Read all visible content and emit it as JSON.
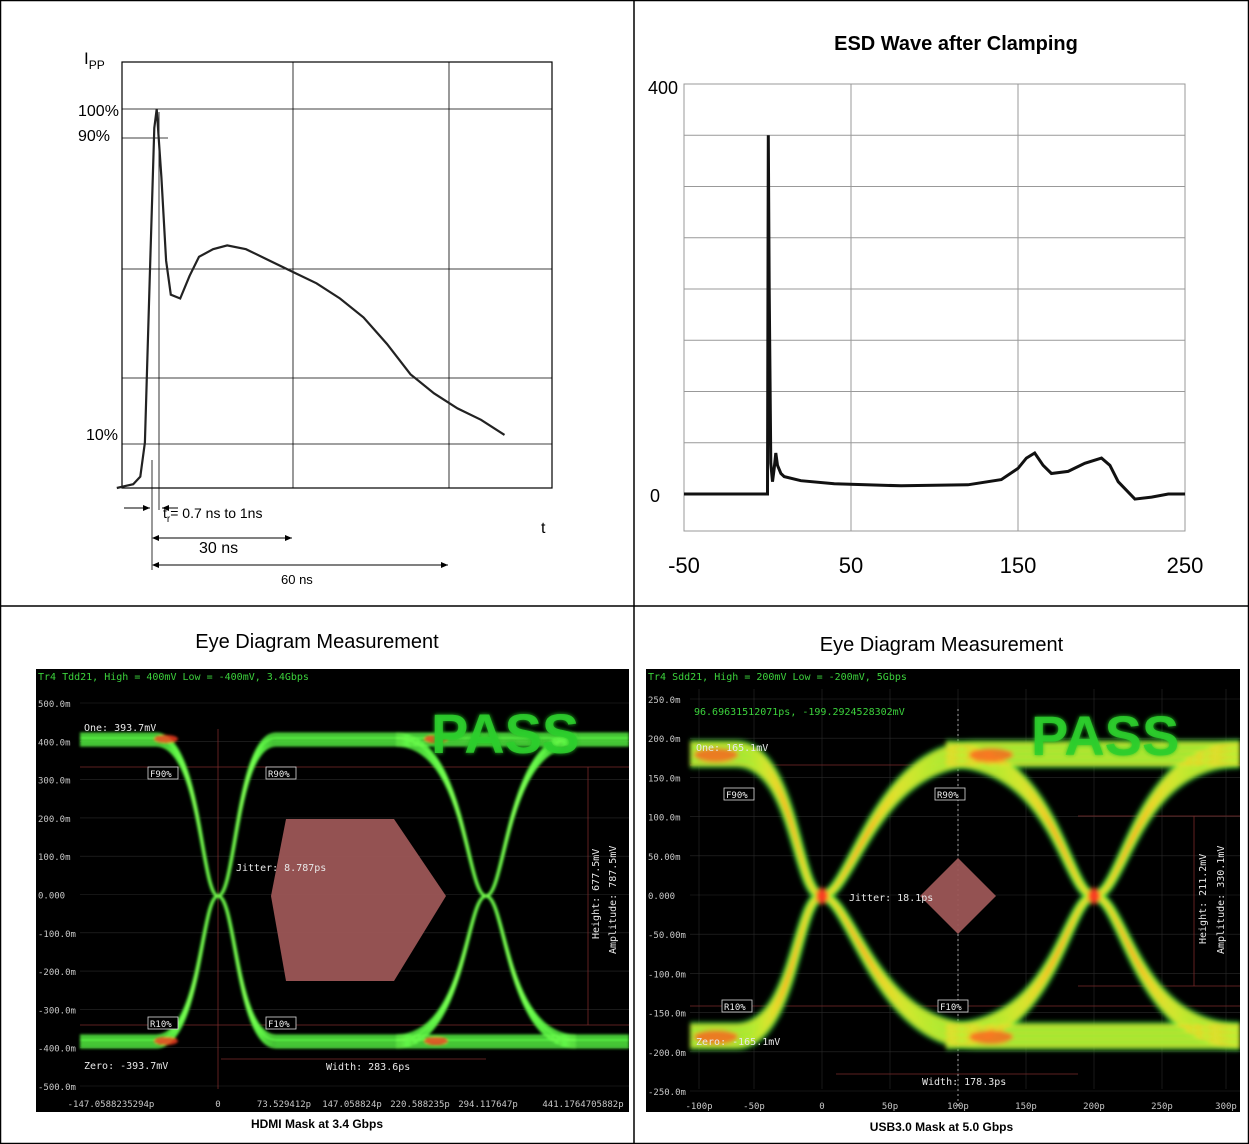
{
  "panel1": {
    "ylabel_main": "I",
    "ylabel_sub": "PP",
    "y_pct_labels": [
      "100%",
      "90%",
      "10%"
    ],
    "xlabel": "t",
    "rise_time_label": "= 0.7 ns to 1ns",
    "rise_time_symbol": "t",
    "rise_time_sub": "r",
    "label_30": "30 ns",
    "label_60": "60 ns",
    "chart_data": {
      "type": "line",
      "title": "",
      "xlabel": "t",
      "ylabel": "IPP",
      "x_unit": "ns",
      "y_unit": "% of IPP",
      "series": [
        {
          "values_x": [
            -7.5,
            -4,
            -2.5,
            -1.5,
            -0.5,
            0.5,
            1,
            2,
            3,
            4,
            6,
            8,
            10,
            13,
            16,
            20,
            25,
            30,
            35,
            40,
            45,
            50,
            55,
            60,
            65,
            70,
            75
          ],
          "values_y": [
            0,
            1,
            3,
            12,
            55,
            95,
            100,
            82,
            60,
            51,
            50,
            56,
            61,
            63,
            64,
            63,
            60,
            57,
            54,
            50,
            45,
            38,
            30,
            25,
            21,
            18,
            14
          ]
        }
      ]
    }
  },
  "panel2": {
    "title": "ESD Wave after Clamping",
    "y_tick_labels": [
      "400",
      "0"
    ],
    "x_tick_labels": [
      "-50",
      "50",
      "150",
      "250"
    ],
    "chart_data": {
      "type": "line",
      "title": "ESD Wave after Clamping",
      "xlim": [
        -50,
        250
      ],
      "ylim": [
        -50,
        400
      ],
      "x": [
        -50,
        0,
        0.5,
        1,
        2,
        3,
        4,
        5,
        6,
        8,
        10,
        20,
        40,
        80,
        120,
        140,
        150,
        155,
        160,
        165,
        170,
        180,
        190,
        200,
        205,
        210,
        220,
        230,
        240,
        250
      ],
      "y": [
        0,
        0,
        350,
        200,
        30,
        12,
        25,
        40,
        28,
        20,
        17,
        13,
        10,
        8,
        9,
        14,
        25,
        35,
        40,
        28,
        20,
        22,
        30,
        35,
        28,
        12,
        -5,
        -3,
        0,
        0
      ]
    }
  },
  "panel3": {
    "heading": "Eye Diagram Measurement",
    "caption": "HDMI Mask at 3.4 Gbps",
    "header_text": "Tr4 Tdd21, High = 400mV Low = -400mV, 3.4Gbps",
    "pass_label": "PASS",
    "y_tick_labels": [
      "500.0m",
      "400.0m",
      "300.0m",
      "200.0m",
      "100.0m",
      "0.000",
      "-100.0m",
      "-200.0m",
      "-300.0m",
      "-400.0m",
      "-500.0m"
    ],
    "x_tick_labels": [
      "-147.0588235294p",
      "0",
      "73.529412p",
      "147.058824p",
      "220.588235p",
      "294.117647p",
      "441.1764705882p"
    ],
    "one_label": "One: 393.7mV",
    "zero_label": "Zero: -393.7mV",
    "jitter_label": "Jitter: 8.787ps",
    "width_label": "Width: 283.6ps",
    "height_label": "Height: 677.5mV",
    "amplitude_label": "Amplitude: 787.5mV",
    "f90": "F90%",
    "r90": "R90%",
    "r10": "R10%",
    "f10": "F10%",
    "chart_data": {
      "type": "scatter",
      "title": "Eye Diagram Measurement",
      "signal": "Tr4 Tdd21",
      "high_mV": 400,
      "low_mV": -400,
      "rate_Gbps": 3.4,
      "one_mV": 393.7,
      "zero_mV": -393.7,
      "jitter_ps": 8.787,
      "width_ps": 283.6,
      "height_mV": 677.5,
      "amplitude_mV": 787.5,
      "ylim_mV": [
        -500,
        500
      ],
      "result": "PASS"
    }
  },
  "panel4": {
    "heading": "Eye Diagram Measurement",
    "caption": "USB3.0 Mask at 5.0 Gbps",
    "header_text": "Tr4 Sdd21, High = 200mV Low = -200mV, 5Gbps",
    "cursor_text": "96.69631512071ps, -199.2924528302mV",
    "pass_label": "PASS",
    "y_tick_labels": [
      "250.0m",
      "200.0m",
      "150.0m",
      "100.0m",
      "50.00m",
      "0.000",
      "-50.00m",
      "-100.0m",
      "-150.0m",
      "-200.0m",
      "-250.0m"
    ],
    "x_tick_labels": [
      "-100p",
      "-50p",
      "0",
      "50p",
      "100p",
      "150p",
      "200p",
      "250p",
      "300p"
    ],
    "one_label": "One: 165.1mV",
    "zero_label": "Zero: -165.1mV",
    "jitter_label": "Jitter: 18.1ps",
    "width_label": "Width: 178.3ps",
    "height_label": "Height: 211.2mV",
    "amplitude_label": "Amplitude: 330.1mV",
    "f90": "F90%",
    "r90": "R90%",
    "r10": "R10%",
    "f10": "F10%",
    "chart_data": {
      "type": "scatter",
      "title": "Eye Diagram Measurement",
      "signal": "Tr4 Sdd21",
      "high_mV": 200,
      "low_mV": -200,
      "rate_Gbps": 5,
      "one_mV": 165.1,
      "zero_mV": -165.1,
      "jitter_ps": 18.1,
      "width_ps": 178.3,
      "height_mV": 211.2,
      "amplitude_mV": 330.1,
      "xlim_ps": [
        -100,
        300
      ],
      "ylim_mV": [
        -250,
        250
      ],
      "result": "PASS"
    }
  },
  "colors": {
    "eye_bg": "#000000",
    "trace_green": "#3cff3c",
    "trace_yellow": "#ffe000",
    "trace_red": "#ff3020",
    "mask_fill": "#9c5656",
    "pass_green": "#22c022",
    "grid_red": "#7a2a2a",
    "axis_text": "#c8c8c8",
    "header_green": "#3cd23c"
  }
}
